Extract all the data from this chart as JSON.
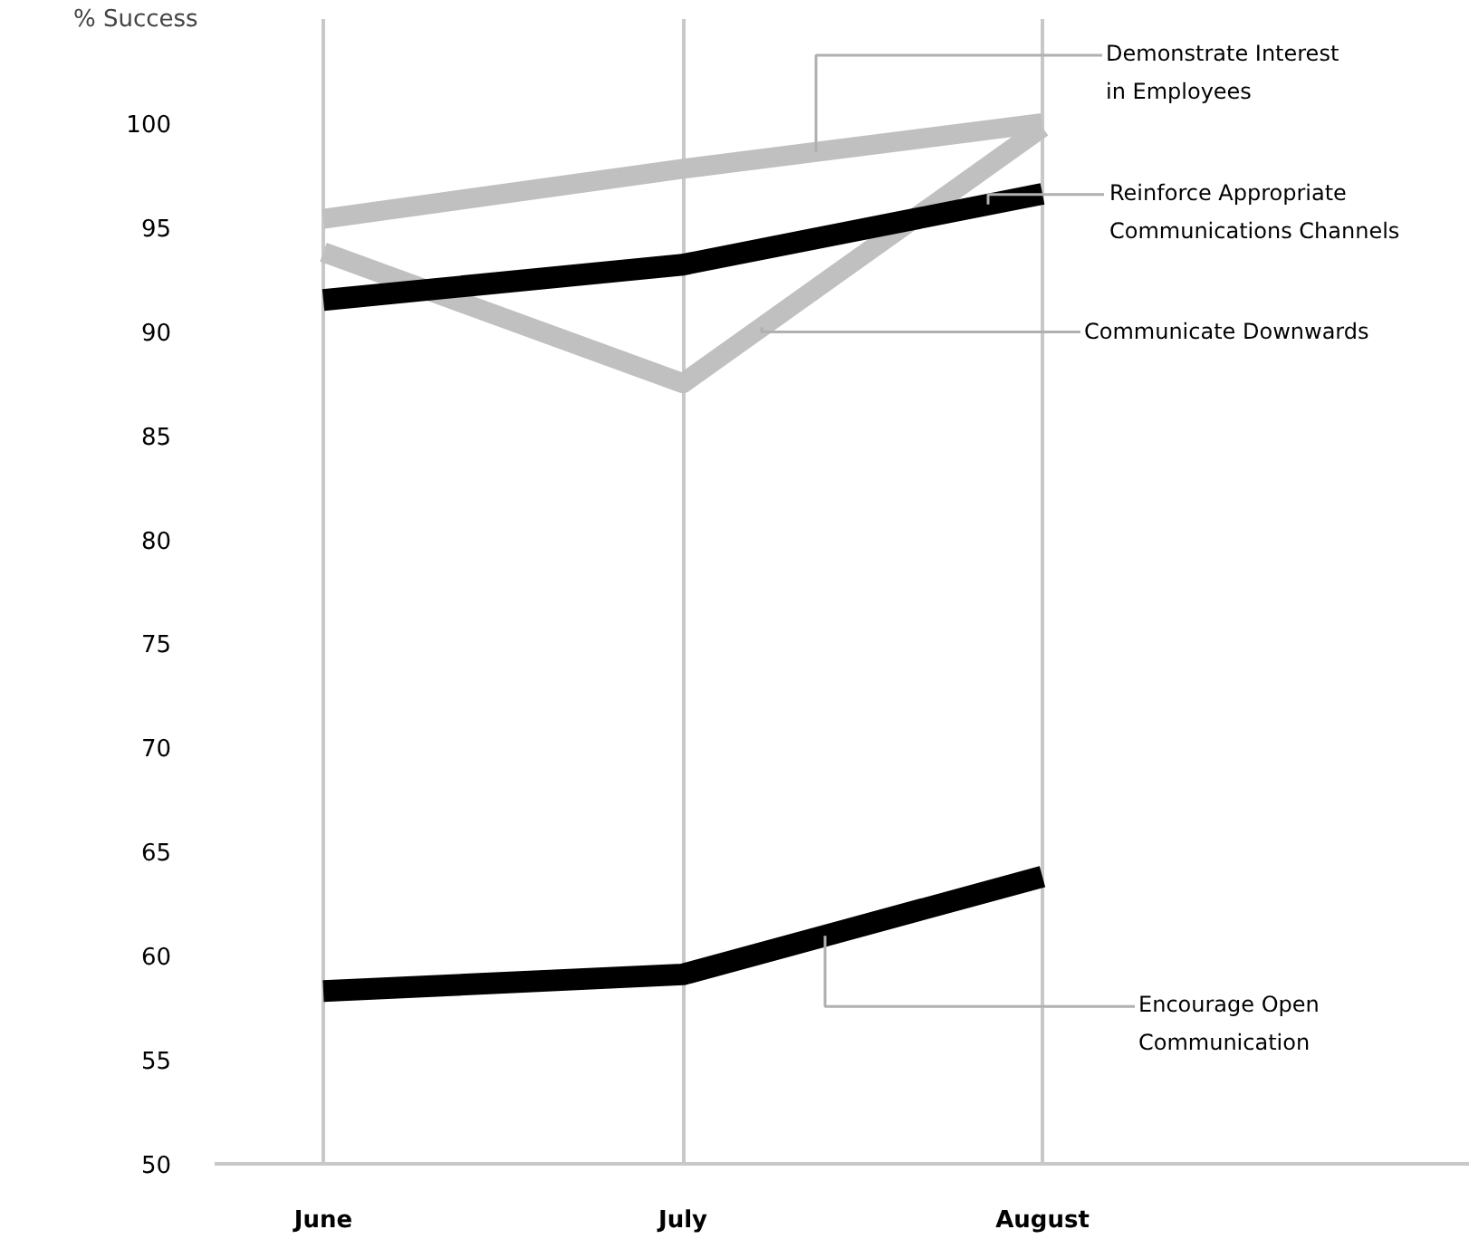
{
  "chart_data": {
    "type": "line",
    "ylabel": "% Success",
    "categories": [
      "June",
      "July",
      "August"
    ],
    "series": [
      {
        "name": "Demonstrate Interest\nin Employees",
        "color": "#c0c0c0",
        "values": [
          95.4,
          97.8,
          100
        ]
      },
      {
        "name": "Communicate Downwards",
        "color": "#c0c0c0",
        "values": [
          93.8,
          87.5,
          99.8
        ]
      },
      {
        "name": "Reinforce Appropriate\nCommunications Channels",
        "color": "#000000",
        "values": [
          91.5,
          93.2,
          96.6
        ]
      },
      {
        "name": "Encourage Open\nCommunication",
        "color": "#000000",
        "values": [
          58.3,
          59.1,
          63.8
        ]
      }
    ],
    "ylim": [
      50,
      105
    ],
    "yticks": [
      50,
      55,
      60,
      65,
      70,
      75,
      80,
      85,
      90,
      95,
      100
    ],
    "grid": "x",
    "legend": false,
    "marker": "none",
    "line_style": "solid"
  }
}
